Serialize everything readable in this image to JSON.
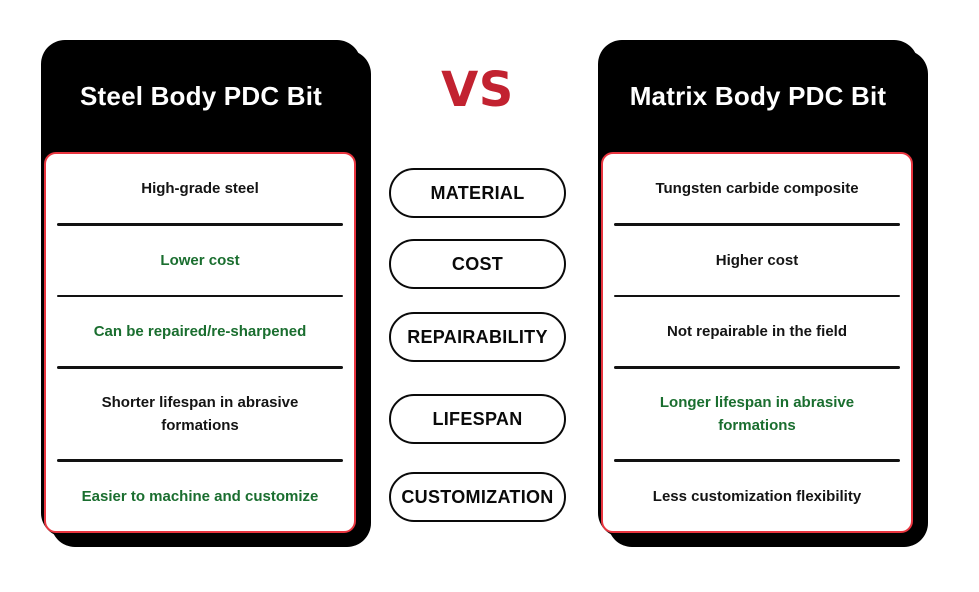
{
  "vs_label": "VS",
  "categories": [
    "MATERIAL",
    "COST",
    "REPAIRABILITY",
    "LIFESPAN",
    "CUSTOMIZATION"
  ],
  "left": {
    "title": "Steel Body PDC Bit",
    "rows": [
      {
        "text": "High-grade steel",
        "tone": "default"
      },
      {
        "text": "Lower cost",
        "tone": "positive"
      },
      {
        "text": "Can be repaired/re-sharpened",
        "tone": "positive"
      },
      {
        "text": "Shorter lifespan in abrasive formations",
        "tone": "default"
      },
      {
        "text": "Easier to machine and customize",
        "tone": "positive"
      }
    ]
  },
  "right": {
    "title": "Matrix Body PDC Bit",
    "rows": [
      {
        "text": "Tungsten carbide composite",
        "tone": "default"
      },
      {
        "text": "Higher cost",
        "tone": "default"
      },
      {
        "text": "Not repairable in the field",
        "tone": "default"
      },
      {
        "text": "Longer lifespan in abrasive formations",
        "tone": "positive"
      },
      {
        "text": "Less customization flexibility",
        "tone": "default"
      }
    ]
  },
  "colors": {
    "card_background": "#000000",
    "panel_border_red": "#e8353f",
    "vs_red": "#c22230",
    "positive_green": "#1a6e2f",
    "divider_black": "#121212"
  }
}
